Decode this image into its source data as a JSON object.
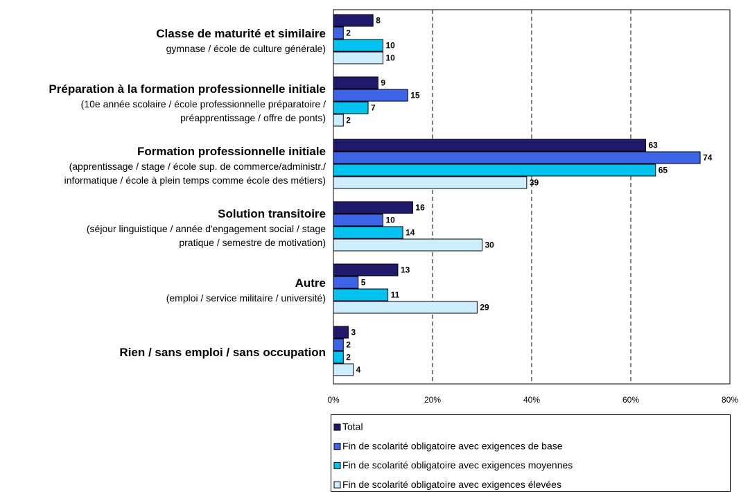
{
  "chart_data": {
    "type": "bar",
    "orientation": "horizontal",
    "categories": [
      "Classe de maturité et similaire",
      "Préparation à la formation professionnelle initiale",
      "Formation professionnelle initiale",
      "Solution transitoire",
      "Autre",
      "Rien / sans emploi / sans occupation"
    ],
    "category_notes": [
      [
        "gymnase / école de culture générale)"
      ],
      [
        "(10e année scolaire / école professionnelle préparatoire /",
        "préapprentissage / offre de ponts)"
      ],
      [
        "(apprentissage / stage / école sup. de commerce/administr./",
        "informatique / école à plein temps comme école des métiers)"
      ],
      [
        "(séjour linguistique / année d'engagement social / stage",
        "pratique / semestre de motivation)"
      ],
      [
        "(emploi / service militaire / université)"
      ],
      []
    ],
    "series": [
      {
        "name": "Total",
        "color": "#1f1a6b",
        "values": [
          8,
          9,
          63,
          16,
          13,
          3
        ]
      },
      {
        "name": "Fin de scolarité obligatoire avec exigences de base",
        "color": "#3d63e6",
        "values": [
          2,
          15,
          74,
          10,
          5,
          2
        ]
      },
      {
        "name": "Fin de scolarité obligatoire avec exigences moyennes",
        "color": "#00c4ef",
        "values": [
          10,
          7,
          65,
          14,
          11,
          2
        ]
      },
      {
        "name": "Fin de scolarité obligatoire avec exigences élevées",
        "color": "#cdeeff",
        "values": [
          10,
          2,
          39,
          30,
          29,
          4
        ]
      }
    ],
    "xlim": [
      0,
      80
    ],
    "xticks": [
      {
        "value": 0,
        "label": "0%"
      },
      {
        "value": 20,
        "label": "20%"
      },
      {
        "value": 40,
        "label": "40%"
      },
      {
        "value": 60,
        "label": "60%"
      },
      {
        "value": 80,
        "label": "80%"
      }
    ],
    "grid": true,
    "legend": "bottom"
  }
}
